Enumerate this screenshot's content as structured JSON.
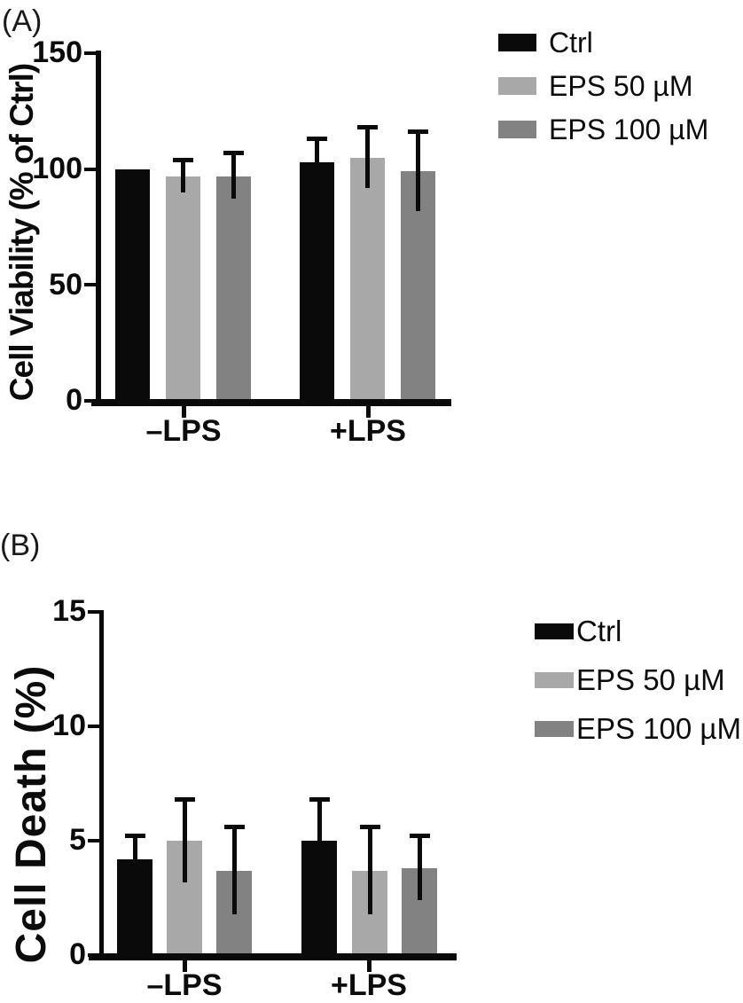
{
  "figure": {
    "background": "#ffffff"
  },
  "panels": [
    {
      "label": "(A)"
    },
    {
      "label": "(B)"
    }
  ],
  "colors": {
    "ctrl": "#0a0a0a",
    "eps50": "#a8a8a8",
    "eps100": "#828282",
    "axis": "#0a0a0a"
  },
  "chart_data": [
    {
      "type": "bar",
      "title": "",
      "xlabel": "",
      "ylabel": "Cell Viability (% of Ctrl)",
      "categories": [
        "–LPS",
        "+LPS"
      ],
      "series": [
        {
          "name": "Ctrl",
          "color": "#0a0a0a",
          "values": [
            100,
            103
          ],
          "errors_plus": [
            0,
            10
          ]
        },
        {
          "name": "EPS 50 µM",
          "color": "#a8a8a8",
          "values": [
            97,
            105
          ],
          "errors_plus": [
            7,
            13
          ]
        },
        {
          "name": "EPS 100 µM",
          "color": "#828282",
          "values": [
            97,
            99
          ],
          "errors_plus": [
            10,
            17
          ]
        }
      ],
      "ylim": [
        0,
        150
      ],
      "yticks": [
        0,
        50,
        100,
        150
      ],
      "grid": false,
      "error_bars": "upper-sd-with-cap",
      "legend_position": "right"
    },
    {
      "type": "bar",
      "title": "",
      "xlabel": "",
      "ylabel": "Cell Death (%)",
      "categories": [
        "–LPS",
        "+LPS"
      ],
      "series": [
        {
          "name": "Ctrl",
          "color": "#0a0a0a",
          "values": [
            4.2,
            5.0
          ],
          "errors_plus": [
            1.0,
            1.8
          ]
        },
        {
          "name": "EPS 50 µM",
          "color": "#a8a8a8",
          "values": [
            5.0,
            3.7
          ],
          "errors_plus": [
            1.8,
            1.9
          ]
        },
        {
          "name": "EPS 100 µM",
          "color": "#828282",
          "values": [
            3.7,
            3.8
          ],
          "errors_plus": [
            1.9,
            1.4
          ]
        }
      ],
      "ylim": [
        0,
        15
      ],
      "yticks": [
        0,
        5,
        10,
        15
      ],
      "grid": false,
      "error_bars": "upper-sd-with-cap",
      "legend_position": "right"
    }
  ]
}
